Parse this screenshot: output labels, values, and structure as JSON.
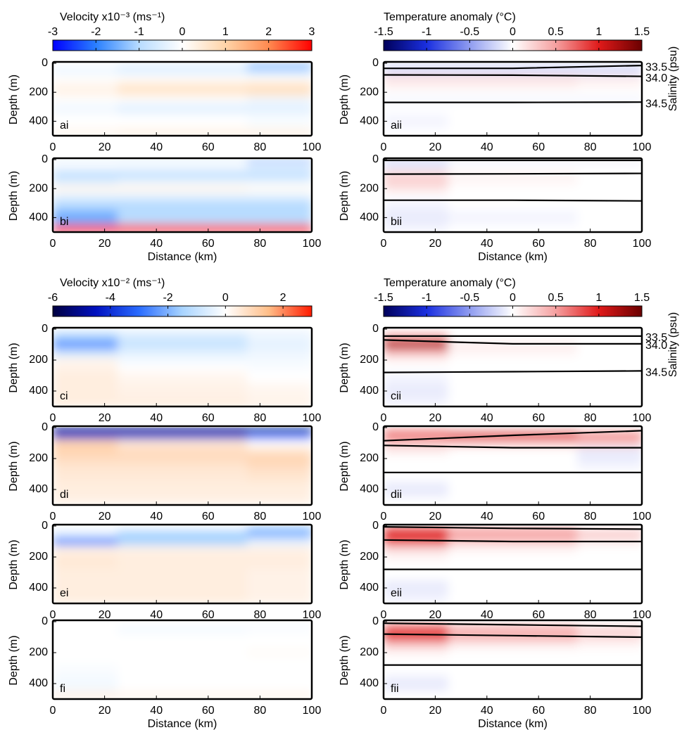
{
  "chart_data": [
    {
      "type": "heatmap",
      "label": "ai",
      "ylabel": "Depth (m)",
      "x": [
        0,
        50,
        100
      ],
      "y": [
        0,
        50,
        100,
        150,
        200,
        250,
        300,
        400,
        500
      ],
      "z": [
        [
          0,
          -0.3,
          -1.5
        ],
        [
          -0.3,
          -0.5,
          -1
        ],
        [
          0,
          0,
          0
        ],
        [
          0.2,
          0.5,
          0.6
        ],
        [
          0.3,
          0.6,
          0.7
        ],
        [
          0,
          0,
          -0.2
        ],
        [
          -0.2,
          -0.4,
          -0.4
        ],
        [
          0,
          0,
          -0.1
        ],
        [
          0.2,
          0.3,
          0.3
        ]
      ],
      "xlim": [
        0,
        100
      ],
      "ylim": [
        0,
        500
      ],
      "xticks": [
        0,
        20,
        40,
        60,
        80,
        100
      ],
      "yticks": [
        0,
        200,
        400
      ],
      "clim": [
        -3,
        3
      ],
      "colors": [
        "#0000ff",
        "#2a80ff",
        "#b8dcff",
        "#ffffff",
        "#ffd4a8",
        "#ff8a50",
        "#ff0000"
      ],
      "colorbar": {
        "title": "Velocity x10⁻³ (ms⁻¹)",
        "ticks": [
          -3,
          -2,
          -1,
          0,
          1,
          2,
          3
        ]
      }
    },
    {
      "type": "heatmap",
      "label": "aii",
      "ylabel": "Depth (m)",
      "x": [
        0,
        50,
        100
      ],
      "y": [
        0,
        50,
        100,
        150,
        200,
        250,
        300,
        400,
        500
      ],
      "z": [
        [
          -0.1,
          -0.1,
          -0.1
        ],
        [
          -0.2,
          -0.2,
          -0.2
        ],
        [
          0.15,
          0.15,
          0.1
        ],
        [
          0.1,
          0.1,
          0.05
        ],
        [
          0,
          0,
          0
        ],
        [
          -0.05,
          -0.05,
          -0.05
        ],
        [
          0,
          0,
          0
        ],
        [
          -0.05,
          0,
          0
        ],
        [
          0,
          0,
          0
        ]
      ],
      "xlim": [
        0,
        100
      ],
      "ylim": [
        0,
        500
      ],
      "xticks": [
        0,
        20,
        40,
        60,
        80,
        100
      ],
      "yticks": [
        0,
        200,
        400
      ],
      "clim": [
        -1.5,
        1.5
      ],
      "colors": [
        "#00005a",
        "#1a2fe0",
        "#8f9cf0",
        "#ffffff",
        "#f5a0a0",
        "#e01a1a",
        "#6a0000"
      ],
      "colorbar": {
        "title": "Temperature anomaly (°C)",
        "ticks": [
          -1.5,
          -1,
          -0.5,
          0,
          0.5,
          1,
          1.5
        ]
      },
      "contour_x": [
        0,
        50,
        100
      ],
      "contours": [
        [
          35,
          35,
          15
        ],
        [
          80,
          82,
          90
        ],
        [
          270,
          270,
          268
        ]
      ],
      "contour_labels": [
        "33.5",
        "34.0",
        "34.5"
      ],
      "right_label": "Salinity (psu)"
    },
    {
      "type": "heatmap",
      "label": "bi",
      "ylabel": "Depth (m)",
      "xlabel": "Distance (km)",
      "x": [
        0,
        50,
        100
      ],
      "y": [
        0,
        50,
        100,
        150,
        200,
        250,
        300,
        400,
        500
      ],
      "z": [
        [
          -0.5,
          -0.6,
          -1.5
        ],
        [
          0,
          0,
          -0.3
        ],
        [
          -1,
          -1,
          -1
        ],
        [
          -0.5,
          -0.3,
          -0.3
        ],
        [
          0.2,
          0.2,
          0.1
        ],
        [
          -0.3,
          -0.3,
          -0.3
        ],
        [
          -1,
          -1,
          -1
        ],
        [
          -1.5,
          -1,
          -1
        ],
        [
          3,
          3,
          3
        ]
      ],
      "xlim": [
        0,
        100
      ],
      "ylim": [
        0,
        500
      ],
      "xticks": [
        0,
        20,
        40,
        60,
        80,
        100
      ],
      "yticks": [
        0,
        200,
        400
      ],
      "clim": [
        -3,
        3
      ],
      "colors": [
        "#0000ff",
        "#2a80ff",
        "#b8dcff",
        "#ffffff",
        "#ffd4a8",
        "#ff8a50",
        "#ff0000"
      ]
    },
    {
      "type": "heatmap",
      "label": "bii",
      "ylabel": "Depth (m)",
      "xlabel": "Distance (km)",
      "x": [
        0,
        50,
        100
      ],
      "y": [
        0,
        50,
        100,
        150,
        200,
        250,
        300,
        400,
        500
      ],
      "z": [
        [
          -0.25,
          -0.1,
          -0.1
        ],
        [
          -0.1,
          0,
          0
        ],
        [
          0.2,
          0.05,
          0
        ],
        [
          0.25,
          0.05,
          0
        ],
        [
          0.15,
          0,
          0
        ],
        [
          0,
          0,
          0
        ],
        [
          -0.05,
          0,
          0
        ],
        [
          -0.1,
          -0.05,
          0
        ],
        [
          -0.05,
          0,
          0
        ]
      ],
      "xlim": [
        0,
        100
      ],
      "ylim": [
        0,
        500
      ],
      "xticks": [
        0,
        20,
        40,
        60,
        80,
        100
      ],
      "yticks": [
        0,
        200,
        400
      ],
      "clim": [
        -1.5,
        1.5
      ],
      "colors": [
        "#00005a",
        "#1a2fe0",
        "#8f9cf0",
        "#ffffff",
        "#f5a0a0",
        "#e01a1a",
        "#6a0000"
      ],
      "contour_x": [
        0,
        50,
        100
      ],
      "contours": [
        [
          5,
          5,
          5
        ],
        [
          100,
          98,
          95
        ],
        [
          280,
          280,
          285
        ]
      ]
    },
    {
      "type": "heatmap",
      "label": "ci",
      "ylabel": "Depth (m)",
      "x": [
        0,
        50,
        100
      ],
      "y": [
        0,
        50,
        100,
        150,
        200,
        250,
        300,
        400,
        500
      ],
      "z": [
        [
          -0.3,
          -0.3,
          -0.3
        ],
        [
          -1.5,
          -0.7,
          -0.3
        ],
        [
          -2.5,
          -1,
          -0.5
        ],
        [
          -1,
          -0.5,
          -0.3
        ],
        [
          0.2,
          -0.2,
          -0.2
        ],
        [
          0.3,
          0,
          -0.1
        ],
        [
          0.4,
          0.2,
          0
        ],
        [
          0.4,
          0.3,
          0.2
        ],
        [
          0.4,
          0.4,
          0.3
        ]
      ],
      "xlim": [
        0,
        100
      ],
      "ylim": [
        0,
        500
      ],
      "xticks": [
        0,
        20,
        40,
        60,
        80,
        100
      ],
      "yticks": [
        0,
        200,
        400
      ],
      "clim": [
        -6,
        3
      ],
      "colors": [
        "#000040",
        "#0010c0",
        "#2a6cff",
        "#a8d4ff",
        "#ffffff",
        "#ffbe88",
        "#ff1a00"
      ],
      "colorbar": {
        "title": "Velocity x10⁻² (ms⁻¹)",
        "ticks": [
          -6,
          -4,
          -2,
          0,
          2
        ]
      }
    },
    {
      "type": "heatmap",
      "label": "cii",
      "ylabel": "Depth (m)",
      "x": [
        0,
        50,
        100
      ],
      "y": [
        0,
        50,
        100,
        150,
        200,
        250,
        300,
        400,
        500
      ],
      "z": [
        [
          0,
          0,
          0
        ],
        [
          0.5,
          0,
          0
        ],
        [
          1.2,
          0.1,
          0
        ],
        [
          0.4,
          0.05,
          0
        ],
        [
          0.05,
          0,
          0
        ],
        [
          0,
          0,
          0
        ],
        [
          -0.05,
          0,
          0
        ],
        [
          -0.1,
          0,
          0
        ],
        [
          -0.05,
          0,
          0
        ]
      ],
      "xlim": [
        0,
        100
      ],
      "ylim": [
        0,
        500
      ],
      "xticks": [
        0,
        20,
        40,
        60,
        80,
        100
      ],
      "yticks": [
        0,
        200,
        400
      ],
      "clim": [
        -1.5,
        1.5
      ],
      "colors": [
        "#00005a",
        "#1a2fe0",
        "#8f9cf0",
        "#ffffff",
        "#f5a0a0",
        "#e01a1a",
        "#6a0000"
      ],
      "colorbar": {
        "title": "Temperature anomaly (°C)",
        "ticks": [
          -1.5,
          -1,
          -0.5,
          0,
          0.5,
          1,
          1.5
        ]
      },
      "contour_x": [
        0,
        50,
        100
      ],
      "contours": [
        [
          45,
          45,
          45
        ],
        [
          70,
          95,
          95
        ],
        [
          280,
          275,
          270
        ]
      ],
      "contour_labels": [
        "33.5",
        "34.0",
        "34.5"
      ],
      "right_label": "Salinity (psu)"
    },
    {
      "type": "heatmap",
      "label": "di",
      "ylabel": "Depth (m)",
      "x": [
        0,
        50,
        100
      ],
      "y": [
        0,
        50,
        100,
        150,
        200,
        250,
        300,
        400,
        500
      ],
      "z": [
        [
          -6,
          -6,
          -6
        ],
        [
          -4,
          -4,
          -3
        ],
        [
          1,
          0.5,
          0
        ],
        [
          1,
          0.8,
          0.6
        ],
        [
          0.8,
          0.8,
          1
        ],
        [
          0.6,
          0.6,
          0.8
        ],
        [
          0.5,
          0.5,
          0.6
        ],
        [
          0.4,
          0.4,
          0.4
        ],
        [
          0.3,
          0.3,
          0.3
        ]
      ],
      "xlim": [
        0,
        100
      ],
      "ylim": [
        0,
        500
      ],
      "xticks": [
        0,
        20,
        40,
        60,
        80,
        100
      ],
      "yticks": [
        0,
        200,
        400
      ],
      "clim": [
        -6,
        3
      ],
      "colors": [
        "#000040",
        "#0010c0",
        "#2a6cff",
        "#a8d4ff",
        "#ffffff",
        "#ffbe88",
        "#ff1a00"
      ]
    },
    {
      "type": "heatmap",
      "label": "dii",
      "ylabel": "Depth (m)",
      "x": [
        0,
        50,
        100
      ],
      "y": [
        0,
        50,
        100,
        150,
        200,
        250,
        300,
        400,
        500
      ],
      "z": [
        [
          0.3,
          0.1,
          0
        ],
        [
          0.7,
          1,
          0.6
        ],
        [
          0.3,
          0.3,
          0.3
        ],
        [
          0.1,
          0,
          -0.1
        ],
        [
          0,
          0,
          -0.1
        ],
        [
          0,
          0,
          -0.05
        ],
        [
          0,
          0,
          0
        ],
        [
          -0.1,
          0,
          0
        ],
        [
          0,
          0,
          0
        ]
      ],
      "xlim": [
        0,
        100
      ],
      "ylim": [
        0,
        500
      ],
      "xticks": [
        0,
        20,
        40,
        60,
        80,
        100
      ],
      "yticks": [
        0,
        200,
        400
      ],
      "clim": [
        -1.5,
        1.5
      ],
      "colors": [
        "#00005a",
        "#1a2fe0",
        "#8f9cf0",
        "#ffffff",
        "#f5a0a0",
        "#e01a1a",
        "#6a0000"
      ],
      "contour_x": [
        0,
        50,
        100
      ],
      "contours": [
        [
          85,
          50,
          20
        ],
        [
          115,
          130,
          130
        ],
        [
          290,
          290,
          290
        ]
      ]
    },
    {
      "type": "heatmap",
      "label": "ei",
      "ylabel": "Depth (m)",
      "x": [
        0,
        50,
        100
      ],
      "y": [
        0,
        50,
        100,
        150,
        200,
        250,
        300,
        400,
        500
      ],
      "z": [
        [
          0,
          0,
          -1.5
        ],
        [
          -0.5,
          -1.5,
          -2
        ],
        [
          -2.5,
          -1.5,
          -0.5
        ],
        [
          0.3,
          0.3,
          0.3
        ],
        [
          0.5,
          0.4,
          0.4
        ],
        [
          0.5,
          0.4,
          0.4
        ],
        [
          0.4,
          0.4,
          0.3
        ],
        [
          0.4,
          0.4,
          0.3
        ],
        [
          0.4,
          0.4,
          0.3
        ]
      ],
      "xlim": [
        0,
        100
      ],
      "ylim": [
        0,
        500
      ],
      "xticks": [
        0,
        20,
        40,
        60,
        80,
        100
      ],
      "yticks": [
        0,
        200,
        400
      ],
      "clim": [
        -6,
        3
      ],
      "colors": [
        "#000040",
        "#0010c0",
        "#2a6cff",
        "#a8d4ff",
        "#ffffff",
        "#ffbe88",
        "#ff1a00"
      ]
    },
    {
      "type": "heatmap",
      "label": "eii",
      "ylabel": "Depth (m)",
      "x": [
        0,
        50,
        100
      ],
      "y": [
        0,
        50,
        100,
        150,
        200,
        250,
        300,
        400,
        500
      ],
      "z": [
        [
          0.6,
          0.3,
          0
        ],
        [
          1,
          0.5,
          0.3
        ],
        [
          0.8,
          0.3,
          0.1
        ],
        [
          0.2,
          0.05,
          0
        ],
        [
          0.05,
          0,
          0
        ],
        [
          0,
          0,
          0
        ],
        [
          0,
          0,
          0
        ],
        [
          -0.1,
          0,
          0
        ],
        [
          -0.05,
          0,
          0
        ]
      ],
      "xlim": [
        0,
        100
      ],
      "ylim": [
        0,
        500
      ],
      "xticks": [
        0,
        20,
        40,
        60,
        80,
        100
      ],
      "yticks": [
        0,
        200,
        400
      ],
      "clim": [
        -1.5,
        1.5
      ],
      "colors": [
        "#00005a",
        "#1a2fe0",
        "#8f9cf0",
        "#ffffff",
        "#f5a0a0",
        "#e01a1a",
        "#6a0000"
      ],
      "contour_x": [
        0,
        50,
        100
      ],
      "contours": [
        [
          5,
          15,
          20
        ],
        [
          90,
          100,
          100
        ],
        [
          280,
          280,
          280
        ]
      ]
    },
    {
      "type": "heatmap",
      "label": "fi",
      "ylabel": "Depth (m)",
      "xlabel": "Distance (km)",
      "x": [
        0,
        50,
        100
      ],
      "y": [
        0,
        50,
        100,
        150,
        200,
        250,
        300,
        400,
        500
      ],
      "z": [
        [
          0,
          0,
          -0.1
        ],
        [
          0,
          -0.2,
          -0.1
        ],
        [
          0,
          0,
          0
        ],
        [
          0,
          0,
          0
        ],
        [
          0,
          0,
          0.1
        ],
        [
          0,
          0,
          0
        ],
        [
          -0.1,
          0,
          0
        ],
        [
          -0.2,
          0,
          0
        ],
        [
          0.3,
          0.2,
          0.2
        ]
      ],
      "xlim": [
        0,
        100
      ],
      "ylim": [
        0,
        500
      ],
      "xticks": [
        0,
        20,
        40,
        60,
        80,
        100
      ],
      "yticks": [
        0,
        200,
        400
      ],
      "clim": [
        -6,
        3
      ],
      "colors": [
        "#000040",
        "#0010c0",
        "#2a6cff",
        "#a8d4ff",
        "#ffffff",
        "#ffbe88",
        "#ff1a00"
      ]
    },
    {
      "type": "heatmap",
      "label": "fii",
      "ylabel": "Depth (m)",
      "xlabel": "Distance (km)",
      "x": [
        0,
        50,
        100
      ],
      "y": [
        0,
        50,
        100,
        150,
        200,
        250,
        300,
        400,
        500
      ],
      "z": [
        [
          0.3,
          0.1,
          0.05
        ],
        [
          0.8,
          0.4,
          0.2
        ],
        [
          0.9,
          0.4,
          0.2
        ],
        [
          0.3,
          0.1,
          0.05
        ],
        [
          0.05,
          0,
          0
        ],
        [
          0,
          0,
          0
        ],
        [
          0,
          0,
          0
        ],
        [
          -0.1,
          0,
          0
        ],
        [
          0,
          0,
          0
        ]
      ],
      "xlim": [
        0,
        100
      ],
      "ylim": [
        0,
        500
      ],
      "xticks": [
        0,
        20,
        40,
        60,
        80,
        100
      ],
      "yticks": [
        0,
        200,
        400
      ],
      "clim": [
        -1.5,
        1.5
      ],
      "colors": [
        "#00005a",
        "#1a2fe0",
        "#8f9cf0",
        "#ffffff",
        "#f5a0a0",
        "#e01a1a",
        "#6a0000"
      ],
      "contour_x": [
        0,
        50,
        100
      ],
      "contours": [
        [
          10,
          20,
          30
        ],
        [
          80,
          90,
          100
        ],
        [
          280,
          280,
          280
        ]
      ]
    }
  ]
}
